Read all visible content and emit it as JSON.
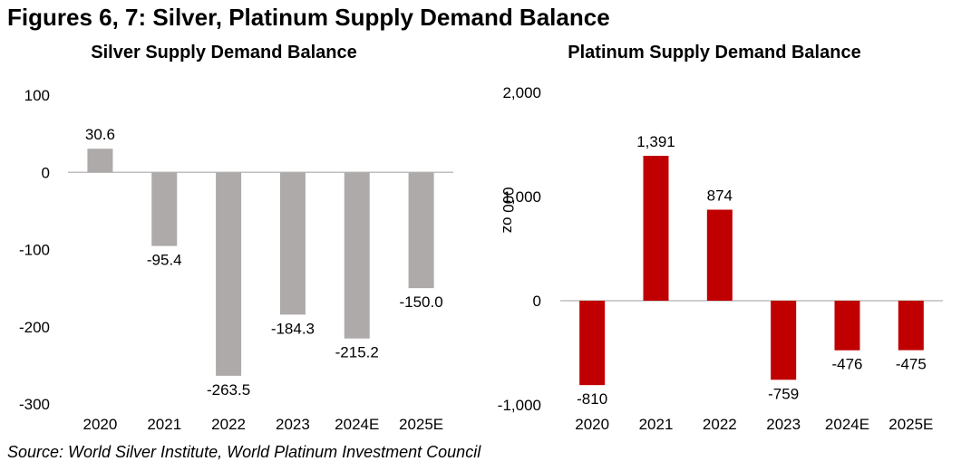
{
  "figure_title": "Figures 6, 7: Silver, Platinum Supply Demand Balance",
  "source": "Source: World Silver Institute, World Platinum Investment Council",
  "colors": {
    "silver_bar": "#ADAAA9",
    "platinum_bar": "#C00000",
    "axis": "#BFBFBF"
  },
  "chart_data": [
    {
      "type": "bar",
      "title": "Silver Supply Demand Balance",
      "categories": [
        "2020",
        "2021",
        "2022",
        "2023",
        "2024E",
        "2025E"
      ],
      "values": [
        30.6,
        -95.4,
        -263.5,
        -184.3,
        -215.2,
        -150.0
      ],
      "value_labels": [
        "30.6",
        "-95.4",
        "-263.5",
        "-184.3",
        "-215.2",
        "-150.0"
      ],
      "ylim": [
        -300,
        100
      ],
      "yticks": [
        100,
        0,
        -100,
        -200,
        -300
      ],
      "ytick_labels": [
        "100",
        "0",
        "-100",
        "-200",
        "-300"
      ],
      "xlabel": "",
      "ylabel": ""
    },
    {
      "type": "bar",
      "title": "Platinum Supply Demand Balance",
      "categories": [
        "2020",
        "2021",
        "2022",
        "2023",
        "2024E",
        "2025E"
      ],
      "values": [
        -810,
        1391,
        874,
        -759,
        -476,
        -475
      ],
      "value_labels": [
        "-810",
        "1,391",
        "874",
        "-759",
        "-476",
        "-475"
      ],
      "ylim": [
        -1000,
        2000
      ],
      "yticks": [
        2000,
        1000,
        0,
        -1000
      ],
      "ytick_labels": [
        "2,000",
        "1,000",
        "0",
        "-1,000"
      ],
      "xlabel": "",
      "ylabel": "000 oz"
    }
  ]
}
